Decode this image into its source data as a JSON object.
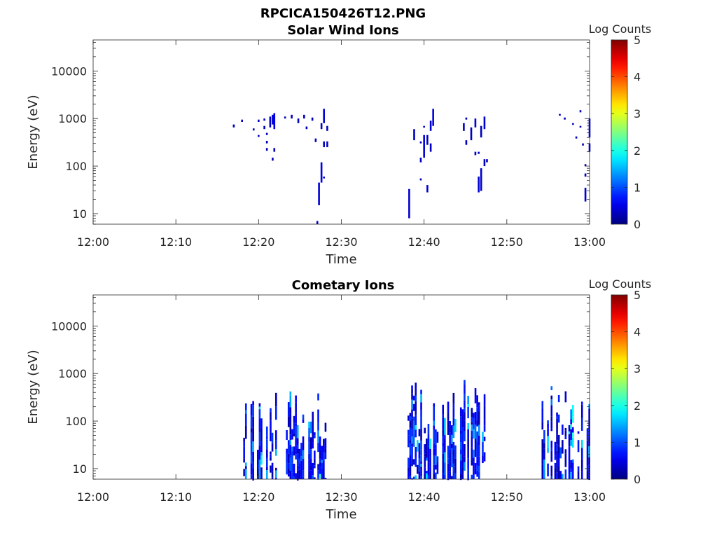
{
  "figure": {
    "title": "RPCICA150426T12.PNG"
  },
  "chart_data": [
    {
      "type": "heatmap",
      "title": "Solar Wind Ions",
      "xlabel": "Time",
      "ylabel": "Energy (eV)",
      "x_ticks": [
        "12:00",
        "12:10",
        "12:20",
        "12:30",
        "12:40",
        "12:50",
        "13:00"
      ],
      "y_ticks": [
        "10",
        "100",
        "1000",
        "10000"
      ],
      "y_scale": "log",
      "ylim": [
        6,
        45000
      ],
      "xlim_minutes": [
        0,
        60
      ],
      "colorbar": {
        "label": "Log Counts",
        "ticks": [
          "0",
          "1",
          "2",
          "3",
          "4",
          "5"
        ],
        "range": [
          0,
          5
        ],
        "colormap": "jet"
      },
      "columns": [
        {
          "t": 17.0,
          "segments": [
            [
              650,
              750,
              0.3
            ]
          ]
        },
        {
          "t": 18.0,
          "segments": [
            [
              850,
              950,
              0.3
            ]
          ]
        },
        {
          "t": 19.4,
          "segments": [
            [
              560,
              620,
              0.3
            ]
          ]
        },
        {
          "t": 20.0,
          "segments": [
            [
              850,
              950,
              0.3
            ],
            [
              410,
              450,
              0.3
            ]
          ]
        },
        {
          "t": 20.7,
          "segments": [
            [
              900,
              1000,
              0.3
            ],
            [
              600,
              700,
              0.3
            ]
          ]
        },
        {
          "t": 21.0,
          "segments": [
            [
              450,
              500,
              0.3
            ],
            [
              300,
              340,
              0.3
            ],
            [
              210,
              240,
              0.3
            ]
          ]
        },
        {
          "t": 21.4,
          "segments": [
            [
              650,
              1100,
              0.4
            ]
          ]
        },
        {
          "t": 21.7,
          "segments": [
            [
              750,
              1200,
              0.4
            ],
            [
              130,
              150,
              0.3
            ]
          ]
        },
        {
          "t": 21.9,
          "segments": [
            [
              600,
              1300,
              0.5
            ],
            [
              200,
              240,
              0.3
            ]
          ]
        },
        {
          "t": 23.2,
          "segments": [
            [
              1000,
              1100,
              0.3
            ]
          ]
        },
        {
          "t": 24.0,
          "segments": [
            [
              1000,
              1200,
              0.3
            ]
          ]
        },
        {
          "t": 24.8,
          "segments": [
            [
              800,
              1000,
              0.3
            ]
          ]
        },
        {
          "t": 25.5,
          "segments": [
            [
              1000,
              1200,
              0.3
            ]
          ]
        },
        {
          "t": 25.8,
          "segments": [
            [
              600,
              680,
              0.3
            ]
          ]
        },
        {
          "t": 26.5,
          "segments": [
            [
              900,
              1050,
              0.3
            ]
          ]
        },
        {
          "t": 26.9,
          "segments": [
            [
              320,
              380,
              0.3
            ]
          ]
        },
        {
          "t": 27.1,
          "segments": [
            [
              6,
              7,
              0.3
            ]
          ]
        },
        {
          "t": 27.3,
          "segments": [
            [
              15,
              45,
              0.4
            ]
          ]
        },
        {
          "t": 27.6,
          "segments": [
            [
              45,
              120,
              0.5
            ],
            [
              600,
              800,
              0.3
            ]
          ]
        },
        {
          "t": 27.9,
          "segments": [
            [
              800,
              1600,
              0.4
            ],
            [
              250,
              330,
              0.3
            ],
            [
              55,
              60,
              0.3
            ]
          ]
        },
        {
          "t": 28.3,
          "segments": [
            [
              550,
              700,
              0.3
            ],
            [
              250,
              330,
              0.3
            ]
          ]
        },
        {
          "t": 38.2,
          "segments": [
            [
              8,
              33,
              0.4
            ]
          ]
        },
        {
          "t": 38.8,
          "segments": [
            [
              350,
              600,
              0.3
            ]
          ]
        },
        {
          "t": 39.6,
          "segments": [
            [
              300,
              330,
              0.3
            ],
            [
              120,
              150,
              0.3
            ],
            [
              50,
              55,
              0.3
            ]
          ]
        },
        {
          "t": 40.0,
          "segments": [
            [
              150,
              450,
              0.4
            ],
            [
              650,
              700,
              0.3
            ]
          ]
        },
        {
          "t": 40.4,
          "segments": [
            [
              28,
              40,
              0.4
            ],
            [
              280,
              450,
              0.3
            ]
          ]
        },
        {
          "t": 40.8,
          "segments": [
            [
              550,
              900,
              0.4
            ],
            [
              200,
              300,
              0.3
            ]
          ]
        },
        {
          "t": 41.1,
          "segments": [
            [
              700,
              1600,
              0.5
            ]
          ]
        },
        {
          "t": 44.8,
          "segments": [
            [
              550,
              800,
              0.3
            ]
          ]
        },
        {
          "t": 45.1,
          "segments": [
            [
              950,
              1050,
              0.3
            ],
            [
              280,
              350,
              0.3
            ]
          ]
        },
        {
          "t": 45.7,
          "segments": [
            [
              350,
              650,
              0.3
            ]
          ]
        },
        {
          "t": 46.2,
          "segments": [
            [
              650,
              1000,
              0.4
            ],
            [
              170,
              200,
              0.3
            ]
          ]
        },
        {
          "t": 46.6,
          "segments": [
            [
              28,
              60,
              0.4
            ],
            [
              180,
              200,
              0.3
            ]
          ]
        },
        {
          "t": 46.9,
          "segments": [
            [
              30,
              90,
              0.4
            ],
            [
              400,
              700,
              0.3
            ]
          ]
        },
        {
          "t": 47.3,
          "segments": [
            [
              600,
              1100,
              0.4
            ],
            [
              100,
              140,
              0.3
            ]
          ]
        },
        {
          "t": 47.6,
          "segments": [
            [
              120,
              140,
              0.3
            ]
          ]
        },
        {
          "t": 56.4,
          "segments": [
            [
              1150,
              1250,
              0.3
            ]
          ]
        },
        {
          "t": 57.0,
          "segments": [
            [
              950,
              1050,
              0.3
            ]
          ]
        },
        {
          "t": 58.0,
          "segments": [
            [
              750,
              800,
              0.3
            ]
          ]
        },
        {
          "t": 58.4,
          "segments": [
            [
              380,
              420,
              0.3
            ]
          ]
        },
        {
          "t": 58.9,
          "segments": [
            [
              650,
              700,
              0.3
            ],
            [
              1350,
              1500,
              0.3
            ]
          ]
        },
        {
          "t": 59.2,
          "segments": [
            [
              270,
              300,
              0.3
            ]
          ]
        },
        {
          "t": 59.5,
          "segments": [
            [
              18,
              35,
              0.4
            ],
            [
              60,
              70,
              0.3
            ],
            [
              100,
              110,
              0.3
            ]
          ]
        },
        {
          "t": 60.0,
          "segments": [
            [
              400,
              1000,
              0.4
            ],
            [
              200,
              300,
              0.3
            ]
          ]
        }
      ]
    },
    {
      "type": "heatmap",
      "title": "Cometary Ions",
      "xlabel": "Time",
      "ylabel": "Energy (eV)",
      "x_ticks": [
        "12:00",
        "12:10",
        "12:20",
        "12:30",
        "12:40",
        "12:50",
        "13:00"
      ],
      "y_ticks": [
        "10",
        "100",
        "1000",
        "10000"
      ],
      "y_scale": "log",
      "ylim": [
        6,
        45000
      ],
      "xlim_minutes": [
        0,
        60
      ],
      "colorbar": {
        "label": "Log Counts",
        "ticks": [
          "0",
          "1",
          "2",
          "3",
          "4",
          "5"
        ],
        "range": [
          0,
          5
        ],
        "colormap": "jet"
      },
      "bursts": [
        {
          "start": 16.6,
          "end": 19.3,
          "top": 850,
          "bottom": 6,
          "peak": 1.6
        },
        {
          "start": 19.8,
          "end": 22.2,
          "top": 1150,
          "bottom": 6,
          "peak": 2.0
        },
        {
          "start": 23.3,
          "end": 25.5,
          "top": 800,
          "bottom": 6,
          "peak": 1.6
        },
        {
          "start": 26.0,
          "end": 28.6,
          "top": 850,
          "bottom": 6,
          "peak": 2.1
        },
        {
          "start": 38.0,
          "end": 42.5,
          "top": 800,
          "bottom": 6,
          "peak": 2.0
        },
        {
          "start": 42.8,
          "end": 47.8,
          "top": 1100,
          "bottom": 6,
          "peak": 2.1
        },
        {
          "start": 54.2,
          "end": 56.7,
          "top": 800,
          "bottom": 6,
          "peak": 1.9
        },
        {
          "start": 57.0,
          "end": 60.0,
          "top": 900,
          "bottom": 6,
          "peak": 2.1
        }
      ]
    }
  ]
}
